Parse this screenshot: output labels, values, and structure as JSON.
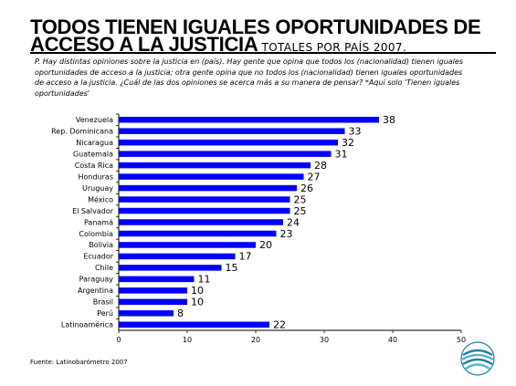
{
  "header": {
    "title_line1": "TODOS TIENEN IGUALES OPORTUNIDADES DE",
    "title_line2": "ACCESO A LA JUSTICIA",
    "subtitle": "TOTALES POR PAÍS 2007.",
    "question": "P. Hay distintas opiniones sobre la justicia en (país). Hay gente que opina que todos los (nacionalidad) tienen iguales oportunidades de acceso a la justicia; otra gente opina que no todos los (nacionalidad) tienen iguales oportunidades de acceso a la justicia. ¿Cuál de las dos opiniones se acerca más a su manera de pensar? *Aquí solo 'Tienen iguales oportunidades'"
  },
  "footer": {
    "source": "Fuente: Latinobarómetro 2007"
  },
  "colors": {
    "bar": "#0000ff",
    "logo_primary": "#1f7fa8",
    "logo_secondary": "#5fb0d0"
  },
  "chart_data": {
    "type": "bar",
    "orientation": "horizontal",
    "categories": [
      "Venezuela",
      "Rep. Dominicana",
      "Nicaragua",
      "Guatemala",
      "Costa Rica",
      "Honduras",
      "Uruguay",
      "México",
      "El Salvador",
      "Panamá",
      "Colombia",
      "Bolivia",
      "Ecuador",
      "Chile",
      "Paraguay",
      "Argentina",
      "Brasil",
      "Perú",
      "Latinoamérica"
    ],
    "values": [
      38,
      33,
      32,
      31,
      28,
      27,
      26,
      25,
      25,
      24,
      23,
      20,
      17,
      15,
      11,
      10,
      10,
      8,
      22
    ],
    "xlim": [
      0,
      50
    ],
    "xticks": [
      0,
      10,
      20,
      30,
      40,
      50
    ],
    "grid": false
  }
}
